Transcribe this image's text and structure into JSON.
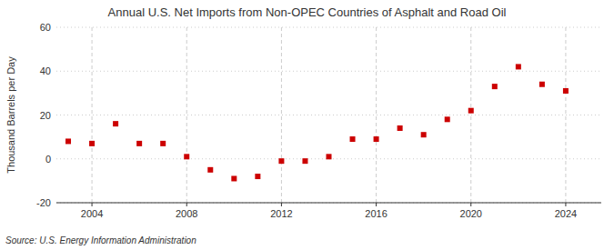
{
  "chart_data": {
    "type": "scatter",
    "title": "Annual U.S. Net Imports from Non-OPEC Countries of Asphalt and Road Oil",
    "ylabel": "Thousand Barrels per Day",
    "source": "Source: U.S. Energy Information Administration",
    "x": [
      2003,
      2004,
      2005,
      2006,
      2007,
      2008,
      2009,
      2010,
      2011,
      2012,
      2013,
      2014,
      2015,
      2016,
      2017,
      2018,
      2019,
      2020,
      2021,
      2022,
      2023,
      2024
    ],
    "values": [
      8,
      7,
      16,
      7,
      7,
      1,
      -5,
      -9,
      -8,
      -1,
      -1,
      1,
      9,
      9,
      14,
      11,
      18,
      22,
      33,
      42,
      34,
      31
    ],
    "color": "#cc0000",
    "marker": "square",
    "xlim": [
      2002.5,
      2025.5
    ],
    "ylim": [
      -20,
      60
    ],
    "xticks": [
      2004,
      2008,
      2012,
      2016,
      2020,
      2024
    ],
    "yticks": [
      -20,
      0,
      20,
      40,
      60
    ],
    "grid": true
  }
}
